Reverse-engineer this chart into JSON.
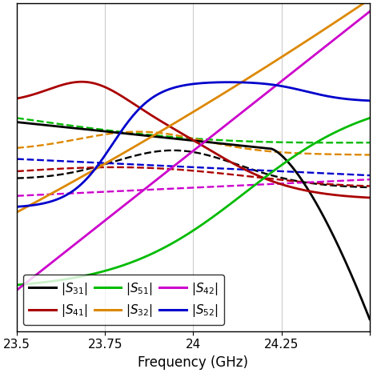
{
  "xlabel": "Frequency (GHz)",
  "xmin": 23.5,
  "xmax": 24.5,
  "ymin": -200,
  "ymax": 200,
  "xticks": [
    23.5,
    23.75,
    24.0,
    24.25,
    24.5
  ],
  "xtick_labels": [
    "23.5",
    "23.75",
    "24",
    "24.25",
    ""
  ],
  "colors": {
    "S31": "#000000",
    "S41": "#aa0000",
    "S51": "#00bb00",
    "S32": "#dd8800",
    "S42": "#cc00cc",
    "S52": "#0000cc"
  },
  "grid_color": "#cccccc",
  "lw_solid": 2.0,
  "lw_dashed": 1.7
}
